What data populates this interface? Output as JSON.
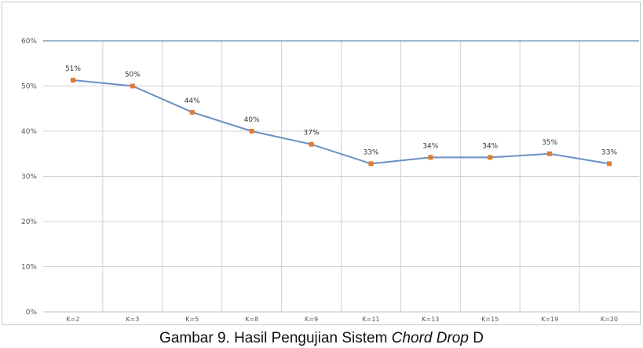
{
  "chart_data": {
    "type": "line",
    "title": "",
    "xlabel": "",
    "ylabel": "",
    "categories": [
      "K=2",
      "K=3",
      "K=5",
      "K=8",
      "K=9",
      "K=11",
      "K=13",
      "K=15",
      "K=19",
      "K=20"
    ],
    "series": [
      {
        "values": [
          51.3,
          50.0,
          44.2,
          40.0,
          37.1,
          32.8,
          34.2,
          34.2,
          35.0,
          32.8
        ],
        "data_labels": [
          "51%",
          "50%",
          "44%",
          "40%",
          "37%",
          "33%",
          "34%",
          "34%",
          "35%",
          "33%"
        ]
      }
    ],
    "ylim": [
      0,
      60
    ],
    "y_ticks": [
      "0%",
      "10%",
      "20%",
      "30%",
      "40%",
      "50%",
      "60%"
    ],
    "y_tick_values": [
      0,
      10,
      20,
      30,
      40,
      50,
      60
    ],
    "grid": true,
    "legend": "none",
    "line_color": "#6b8fc4",
    "marker_color": "#e07b32",
    "grid_color": "#d0d0d0",
    "top_line_color": "#7ba3c0"
  },
  "caption": {
    "prefix": "Gambar 9. Hasil Pengujian Sistem ",
    "emphasis": "Chord Drop",
    "suffix": " D"
  }
}
